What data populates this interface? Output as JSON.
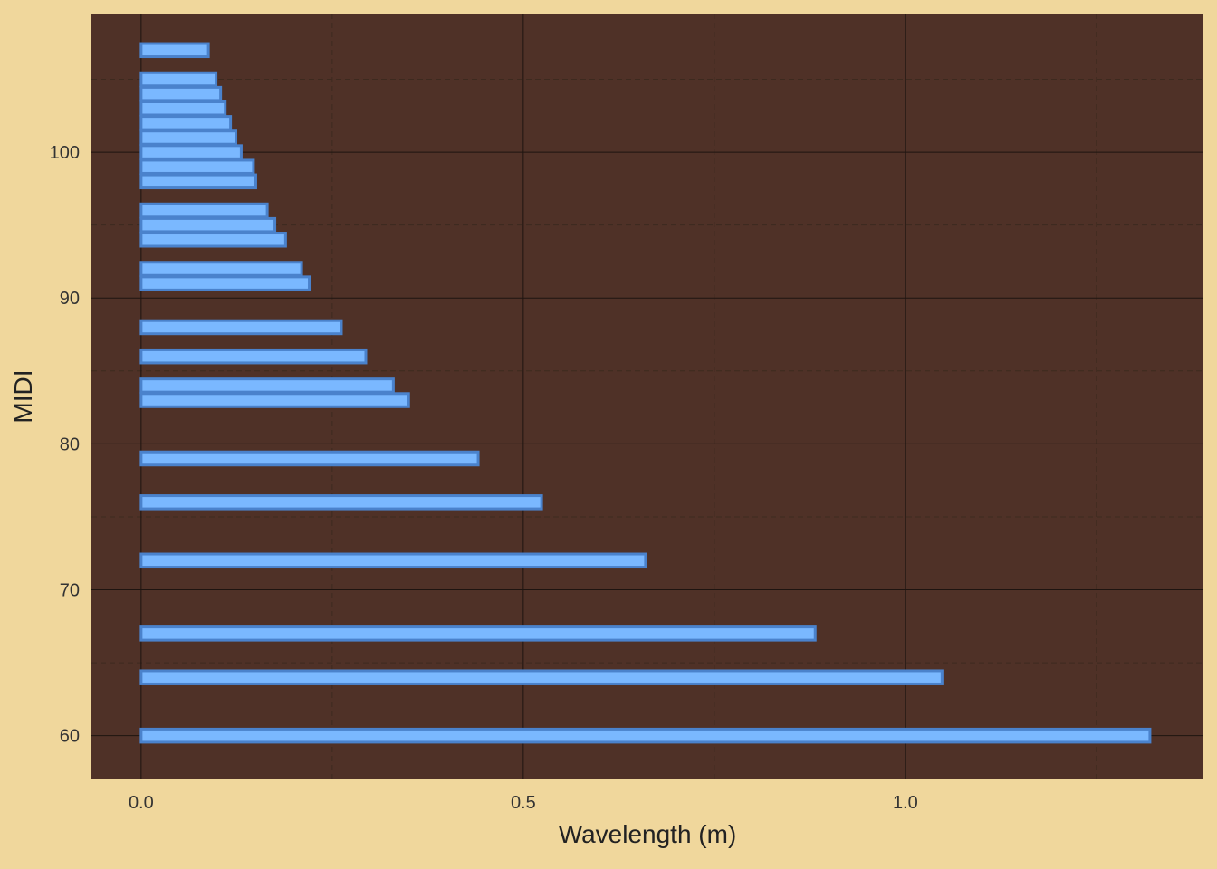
{
  "chart_data": {
    "type": "bar",
    "orientation": "horizontal",
    "xlabel": "Wavelength (m)",
    "ylabel": "MIDI",
    "xlim": [
      -0.065,
      1.39
    ],
    "ylim": [
      57,
      109.5
    ],
    "x_ticks": [
      "0.0",
      "0.5",
      "1.0"
    ],
    "y_ticks": [
      "60",
      "70",
      "80",
      "90",
      "100"
    ],
    "grid": true,
    "colors": {
      "page_background": "#f0d79c",
      "panel_background": "#4f3127",
      "bar_fill": "#7ab8ff",
      "bar_stroke": "#4a82cc",
      "grid_major": "#1e1410",
      "grid_minor": "#3d2a1f"
    },
    "bars": [
      {
        "midi": 60,
        "wavelength": 1.32
      },
      {
        "midi": 64,
        "wavelength": 1.048
      },
      {
        "midi": 67,
        "wavelength": 0.882
      },
      {
        "midi": 72,
        "wavelength": 0.66
      },
      {
        "midi": 76,
        "wavelength": 0.524
      },
      {
        "midi": 79,
        "wavelength": 0.441
      },
      {
        "midi": 83,
        "wavelength": 0.35
      },
      {
        "midi": 84,
        "wavelength": 0.33
      },
      {
        "midi": 86,
        "wavelength": 0.294
      },
      {
        "midi": 88,
        "wavelength": 0.262
      },
      {
        "midi": 91,
        "wavelength": 0.22
      },
      {
        "midi": 92,
        "wavelength": 0.21
      },
      {
        "midi": 94,
        "wavelength": 0.189
      },
      {
        "midi": 95,
        "wavelength": 0.175
      },
      {
        "midi": 96,
        "wavelength": 0.165
      },
      {
        "midi": 98,
        "wavelength": 0.15
      },
      {
        "midi": 99,
        "wavelength": 0.147
      },
      {
        "midi": 100,
        "wavelength": 0.131
      },
      {
        "midi": 101,
        "wavelength": 0.124
      },
      {
        "midi": 102,
        "wavelength": 0.117
      },
      {
        "midi": 103,
        "wavelength": 0.11
      },
      {
        "midi": 104,
        "wavelength": 0.104
      },
      {
        "midi": 105,
        "wavelength": 0.098
      },
      {
        "midi": 107,
        "wavelength": 0.088
      }
    ]
  }
}
